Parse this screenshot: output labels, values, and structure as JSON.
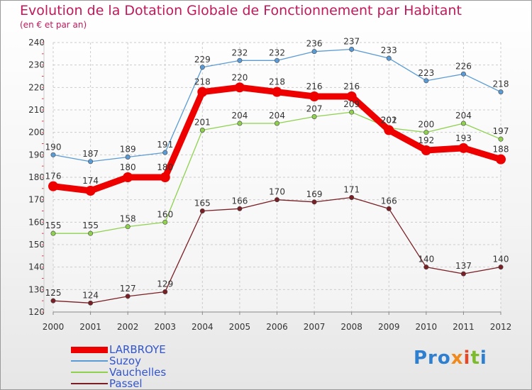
{
  "title": "Evolution de la Dotation Globale de Fonctionnement par Habitant",
  "subtitle": "(en € et par an)",
  "logo": {
    "p1": "Pro",
    "p2": "x",
    "p3": "i",
    "p4": "t",
    "p5": "i"
  },
  "chart_data": {
    "type": "line",
    "title": "Evolution de la Dotation Globale de Fonctionnement par Habitant",
    "subtitle": "(en € et par an)",
    "xlabel": "",
    "ylabel": "",
    "x": [
      2000,
      2001,
      2002,
      2003,
      2004,
      2005,
      2006,
      2007,
      2008,
      2009,
      2010,
      2011,
      2012
    ],
    "ylim": [
      120,
      240
    ],
    "yticks": [
      120,
      130,
      140,
      150,
      160,
      170,
      180,
      190,
      200,
      210,
      220,
      230,
      240
    ],
    "grid": true,
    "legend_position": "bottom-left",
    "series": [
      {
        "name": "Suzoy",
        "color": "#5b9bd5",
        "values": [
          190,
          187,
          189,
          191,
          229,
          232,
          232,
          236,
          237,
          233,
          223,
          226,
          218
        ]
      },
      {
        "name": "Vauchelles",
        "color": "#8fd14f",
        "values": [
          155,
          155,
          158,
          160,
          201,
          204,
          204,
          207,
          209,
          202,
          200,
          204,
          197
        ]
      },
      {
        "name": "Passel",
        "color": "#7a1f25",
        "values": [
          125,
          124,
          127,
          129,
          165,
          166,
          170,
          169,
          171,
          166,
          140,
          137,
          140
        ]
      },
      {
        "name": "LARBROYE",
        "color": "#ee0000",
        "values": [
          176,
          174,
          180,
          180,
          218,
          220,
          218,
          216,
          216,
          201,
          192,
          193,
          188
        ]
      }
    ],
    "legend_order": [
      "LARBROYE",
      "Suzoy",
      "Vauchelles",
      "Passel"
    ]
  }
}
